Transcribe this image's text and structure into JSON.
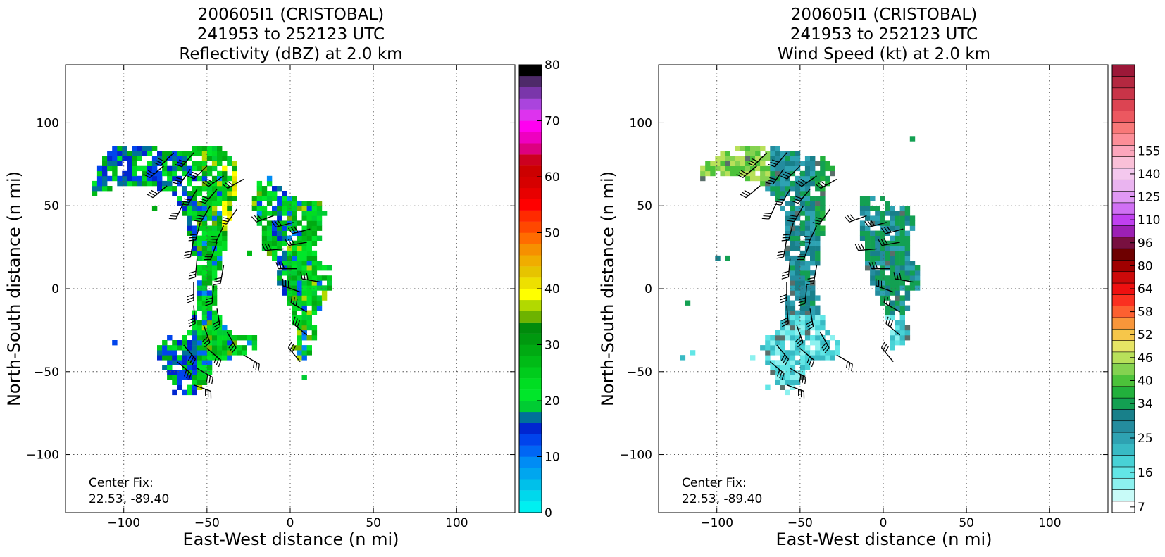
{
  "panels": [
    {
      "title": [
        "200605I1 (CRISTOBAL)",
        "241953 to 252123 UTC",
        "Reflectivity (dBZ) at 2.0 km"
      ],
      "xlabel": "East-West distance (n mi)",
      "ylabel": "North-South distance (n mi)",
      "center_fix": [
        "Center Fix:",
        "22.53, -89.40"
      ],
      "colorbar": {
        "labels": [
          "0",
          "10",
          "20",
          "30",
          "40",
          "50",
          "60",
          "70",
          "80"
        ],
        "min": 0,
        "max": 80,
        "step": 2.5,
        "colors": [
          "#00f0f0",
          "#00d8ec",
          "#00c0ea",
          "#00a6ef",
          "#008cf4",
          "#0066f4",
          "#0044ec",
          "#0026d0",
          "#00709a",
          "#00cc33",
          "#00e62a",
          "#00dd22",
          "#00cc1c",
          "#00bb16",
          "#00aa12",
          "#00990f",
          "#008b0c",
          "#6db300",
          "#b2d900",
          "#ffff00",
          "#ede000",
          "#e6c400",
          "#f0ad00",
          "#f69000",
          "#ff6c00",
          "#ff4800",
          "#ff2a00",
          "#ff0000",
          "#e80000",
          "#d60000",
          "#cc0000",
          "#cc0020",
          "#dd0080",
          "#ee00c0",
          "#ff00f0",
          "#dd33ee",
          "#aa44dd",
          "#7a36aa",
          "#4e2a6a",
          "#000000"
        ]
      },
      "field": "reflectivity"
    },
    {
      "title": [
        "200605I1 (CRISTOBAL)",
        "241953 to 252123 UTC",
        "Wind Speed (kt) at 2.0 km"
      ],
      "xlabel": "East-West distance (n mi)",
      "ylabel": "North-South distance (n mi)",
      "center_fix": [
        "Center Fix:",
        "22.53, -89.40"
      ],
      "colorbar": {
        "labels": [
          "7",
          "16",
          "25",
          "34",
          "40",
          "46",
          "52",
          "58",
          "64",
          "80",
          "96",
          "110",
          "125",
          "140",
          "155"
        ],
        "label_steps": [
          0,
          3,
          6,
          9,
          11,
          13,
          15,
          17,
          19,
          21,
          23,
          25,
          27,
          29,
          31
        ],
        "colors": [
          "#ffffff",
          "#c8fbf8",
          "#8cf1ef",
          "#62e6e6",
          "#48d2d6",
          "#38bac4",
          "#2ea2b2",
          "#248c9e",
          "#18808a",
          "#13a052",
          "#22b03c",
          "#4cc23a",
          "#84d250",
          "#b8e05a",
          "#e6e465",
          "#f6c64a",
          "#f8963a",
          "#fc6030",
          "#fa3020",
          "#ee1010",
          "#cc0a0a",
          "#a00000",
          "#6e0000",
          "#781040",
          "#9c20b4",
          "#c040f0",
          "#d070f4",
          "#e098f4",
          "#eab4f0",
          "#f4c8ee",
          "#fac0d8",
          "#fca6bc",
          "#fc8e98",
          "#f87878",
          "#ec5860",
          "#dc4452",
          "#c83448",
          "#b42840",
          "#9c1838"
        ]
      },
      "field": "wind"
    }
  ],
  "axes": {
    "xlim": [
      -135,
      135
    ],
    "ylim": [
      -135,
      135
    ],
    "xticks": [
      -100,
      -50,
      0,
      50,
      100
    ],
    "yticks": [
      -100,
      -50,
      0,
      50,
      100
    ],
    "xtick_labels": [
      "−100",
      "−50",
      "0",
      "50",
      "100"
    ],
    "ytick_labels": [
      "−100",
      "−50",
      "0",
      "50",
      "100"
    ],
    "grid": "dotted"
  },
  "chart_data": [
    {
      "type": "heatmap",
      "title": "200605I1 (CRISTOBAL) 241953 to 252123 UTC Reflectivity (dBZ) at 2.0 km",
      "xlabel": "East-West distance (n mi)",
      "ylabel": "North-South distance (n mi)",
      "xlim": [
        -135,
        135
      ],
      "ylim": [
        -135,
        135
      ],
      "colorbar_range": [
        0,
        80
      ],
      "grid": true,
      "overlay": "wind barbs"
    },
    {
      "type": "heatmap",
      "title": "200605I1 (CRISTOBAL) 241953 to 252123 UTC Wind Speed (kt) at 2.0 km",
      "xlabel": "East-West distance (n mi)",
      "ylabel": "North-South distance (n mi)",
      "xlim": [
        -135,
        135
      ],
      "ylim": [
        -135,
        135
      ],
      "colorbar_range": [
        7,
        155
      ],
      "grid": true,
      "overlay": "wind barbs"
    }
  ]
}
